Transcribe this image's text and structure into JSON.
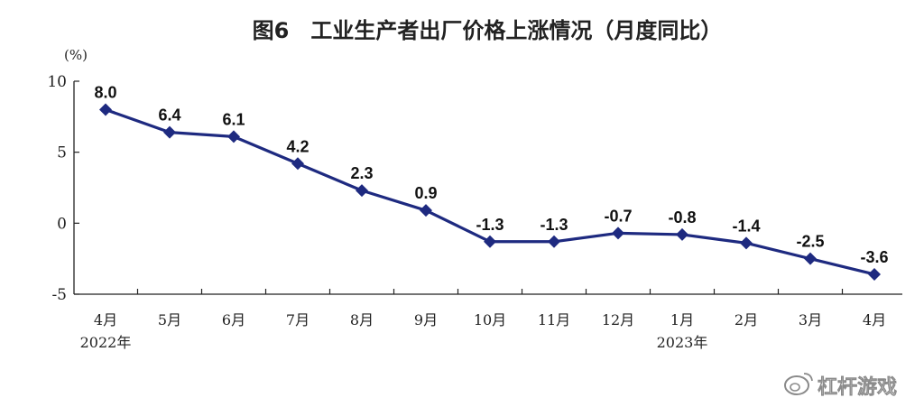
{
  "chart_data": {
    "type": "line",
    "title": "图6　工业生产者出厂价格上涨情况（月度同比）",
    "ylabel": "(%)",
    "xlabel": "",
    "ylim": [
      -5,
      10
    ],
    "yticks": [
      "10",
      "5",
      "0",
      "-5"
    ],
    "ytick_values": [
      10,
      5,
      0,
      -5
    ],
    "categories": [
      "4月",
      "5月",
      "6月",
      "7月",
      "8月",
      "9月",
      "10月",
      "11月",
      "12月",
      "1月",
      "2月",
      "3月",
      "4月"
    ],
    "year_labels": [
      "2022年",
      "",
      "",
      "",
      "",
      "",
      "",
      "",
      "",
      "2023年",
      "",
      "",
      ""
    ],
    "series": [
      {
        "values": [
          8.0,
          6.4,
          6.1,
          4.2,
          2.3,
          0.9,
          -1.3,
          -1.3,
          -0.7,
          -0.8,
          -1.4,
          -2.5,
          -3.6
        ],
        "labels": [
          "8.0",
          "6.4",
          "6.1",
          "4.2",
          "2.3",
          "0.9",
          "-1.3",
          "-1.3",
          "-0.7",
          "-0.8",
          "-1.4",
          "-2.5",
          "-3.6"
        ]
      }
    ],
    "line_color": "#1e2a80",
    "marker": "diamond",
    "grid": false,
    "legend": "none"
  },
  "watermark": {
    "text": "杠杆游戏",
    "icon": "weibo-icon"
  }
}
